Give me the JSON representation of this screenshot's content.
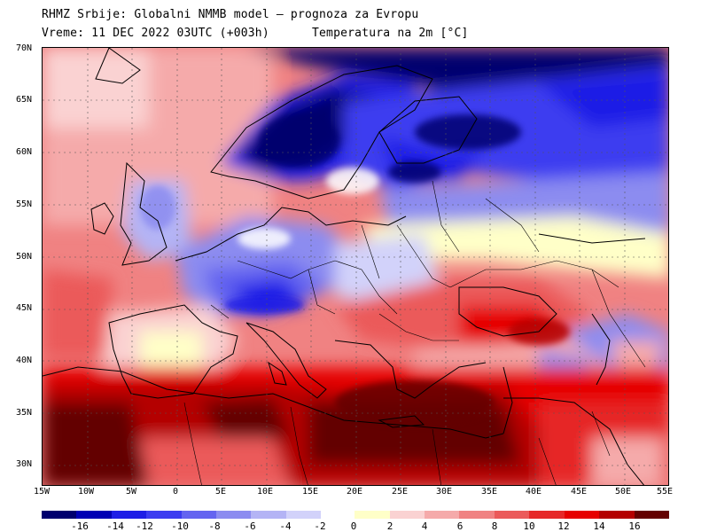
{
  "title": {
    "line1": "RHMZ Srbije: Globalni NMMB model — prognoza za Evropu",
    "line2": "Vreme: 11 DEC 2022 03UTC (+003h)",
    "line3": "Temperatura na 2m [°C]"
  },
  "map": {
    "region": "Europe",
    "field": "2m temperature",
    "lon_range": [
      -15,
      55
    ],
    "lat_range": [
      28,
      70
    ],
    "lat_labels": [
      "70N",
      "65N",
      "60N",
      "55N",
      "50N",
      "45N",
      "40N",
      "35N",
      "30N"
    ],
    "lon_labels": [
      "15W",
      "10W",
      "5W",
      "0",
      "5E",
      "10E",
      "15E",
      "20E",
      "25E",
      "30E",
      "35E",
      "40E",
      "45E",
      "50E",
      "55E"
    ]
  },
  "colorbar": {
    "labels": [
      "-16",
      "-14",
      "-12",
      "-10",
      "-8",
      "-6",
      "-4",
      "-2",
      "0",
      "2",
      "4",
      "6",
      "8",
      "10",
      "12",
      "14",
      "16"
    ],
    "cold_colors": [
      "#00006e",
      "#0000b4",
      "#1e1ee6",
      "#3c3cf0",
      "#6464f0",
      "#8c8cf0",
      "#b4b4f5",
      "#d2d2fa"
    ],
    "warm_colors": [
      "#ffffc8",
      "#fad2d2",
      "#f5aaaa",
      "#f08282",
      "#eb5a5a",
      "#e62828",
      "#e60000",
      "#b40000",
      "#640000"
    ]
  }
}
